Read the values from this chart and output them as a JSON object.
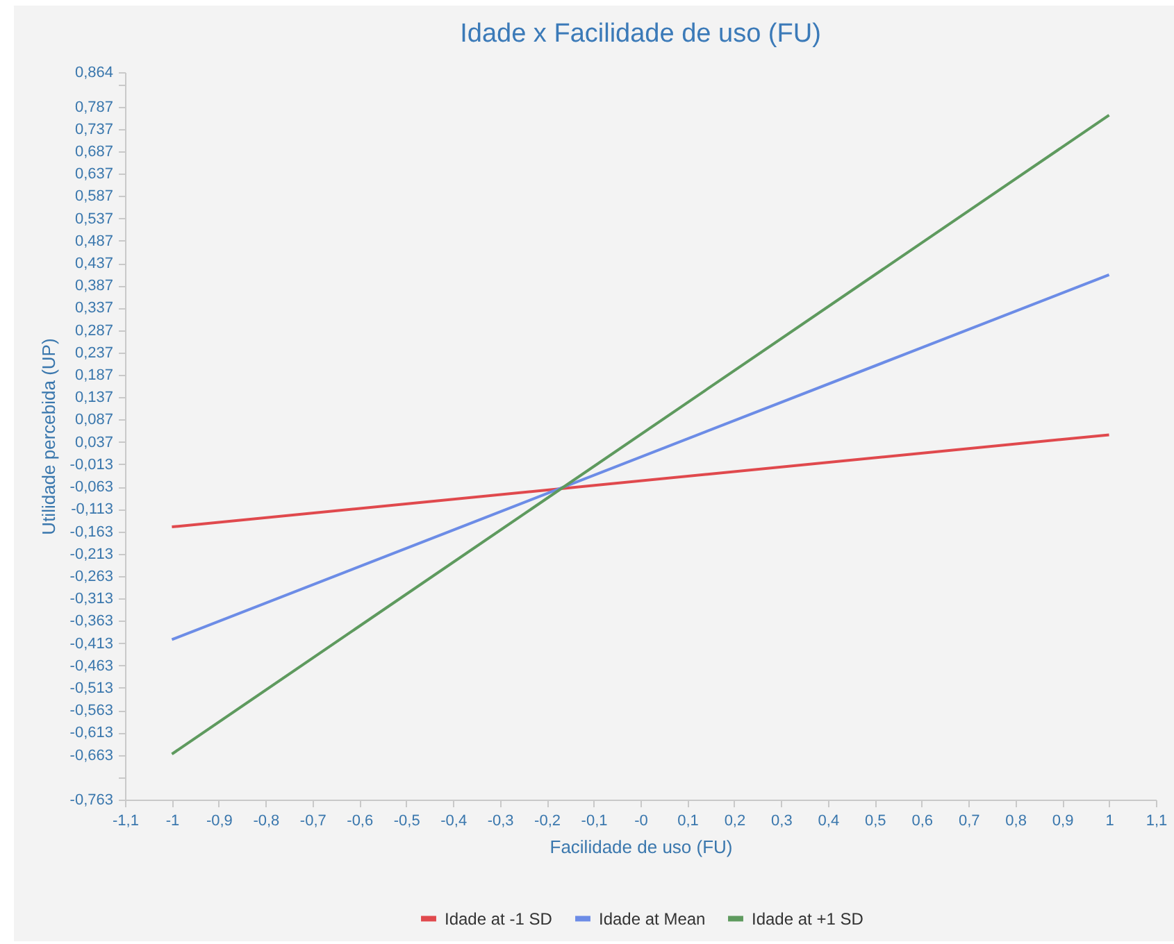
{
  "chart_data": {
    "type": "line",
    "title": "Idade x Facilidade de uso (FU)",
    "xlabel": "Facilidade de uso (FU)",
    "ylabel": "Utilidade percebida (UP)",
    "x": [
      -1,
      1
    ],
    "series": [
      {
        "name": "Idade at -1 SD",
        "color": "#e0494d",
        "values": [
          -0.153,
          0.053
        ]
      },
      {
        "name": "Idade at Mean",
        "color": "#6c8ce6",
        "values": [
          -0.405,
          0.411
        ]
      },
      {
        "name": "Idade at +1 SD",
        "color": "#5e9a5e",
        "values": [
          -0.661,
          0.768
        ]
      }
    ],
    "xlim": [
      -1.1,
      1.1
    ],
    "xticks": [
      {
        "value": -1.1,
        "label": "-1,1"
      },
      -1,
      {
        "value": -0.9,
        "label": "-0,9"
      },
      {
        "value": -0.8,
        "label": "-0,8"
      },
      {
        "value": -0.7,
        "label": "-0,7"
      },
      {
        "value": -0.6,
        "label": "-0,6"
      },
      {
        "value": -0.5,
        "label": "-0,5"
      },
      {
        "value": -0.4,
        "label": "-0,4"
      },
      {
        "value": -0.3,
        "label": "-0,3"
      },
      {
        "value": -0.2,
        "label": "-0,2"
      },
      {
        "value": -0.1,
        "label": "-0,1"
      },
      {
        "value": 0,
        "label": "-0"
      },
      {
        "value": 0.1,
        "label": "0,1"
      },
      {
        "value": 0.2,
        "label": "0,2"
      },
      {
        "value": 0.3,
        "label": "0,3"
      },
      {
        "value": 0.4,
        "label": "0,4"
      },
      {
        "value": 0.5,
        "label": "0,5"
      },
      {
        "value": 0.6,
        "label": "0,6"
      },
      {
        "value": 0.7,
        "label": "0,7"
      },
      {
        "value": 0.8,
        "label": "0,8"
      },
      {
        "value": 0.9,
        "label": "0,9"
      },
      1,
      {
        "value": 1.1,
        "label": "1,1"
      }
    ],
    "ylim": [
      -0.763,
      0.864
    ],
    "yticks": [
      {
        "value": -0.763,
        "label": "-0,763"
      },
      {
        "value": -0.713,
        "label": null
      },
      {
        "value": -0.663,
        "label": "-0,663"
      },
      {
        "value": -0.613,
        "label": "-0,613"
      },
      {
        "value": -0.563,
        "label": "-0,563"
      },
      {
        "value": -0.513,
        "label": "-0,513"
      },
      {
        "value": -0.463,
        "label": "-0,463"
      },
      {
        "value": -0.413,
        "label": "-0,413"
      },
      {
        "value": -0.363,
        "label": "-0,363"
      },
      {
        "value": -0.313,
        "label": "-0,313"
      },
      {
        "value": -0.263,
        "label": "-0,263"
      },
      {
        "value": -0.213,
        "label": "-0,213"
      },
      {
        "value": -0.163,
        "label": "-0,163"
      },
      {
        "value": -0.113,
        "label": "-0,113"
      },
      {
        "value": -0.063,
        "label": "-0,063"
      },
      {
        "value": -0.013,
        "label": "-0,013"
      },
      {
        "value": 0.037,
        "label": "0,037"
      },
      {
        "value": 0.087,
        "label": "0,087"
      },
      {
        "value": 0.137,
        "label": "0,137"
      },
      {
        "value": 0.187,
        "label": "0,187"
      },
      {
        "value": 0.237,
        "label": "0,237"
      },
      {
        "value": 0.287,
        "label": "0,287"
      },
      {
        "value": 0.337,
        "label": "0,337"
      },
      {
        "value": 0.387,
        "label": "0,387"
      },
      {
        "value": 0.437,
        "label": "0,437"
      },
      {
        "value": 0.487,
        "label": "0,487"
      },
      {
        "value": 0.537,
        "label": "0,537"
      },
      {
        "value": 0.587,
        "label": "0,587"
      },
      {
        "value": 0.637,
        "label": "0,637"
      },
      {
        "value": 0.687,
        "label": "0,687"
      },
      {
        "value": 0.737,
        "label": "0,737"
      },
      {
        "value": 0.787,
        "label": "0,787"
      },
      {
        "value": 0.837,
        "label": null
      },
      {
        "value": 0.864,
        "label": "0,864"
      }
    ],
    "grid": false,
    "legend": "bottom"
  }
}
